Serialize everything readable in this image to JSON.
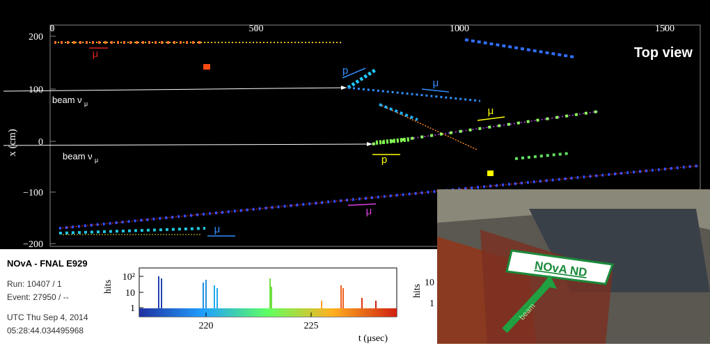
{
  "display": {
    "view_label": "Top view",
    "y_axis_label": "x (cm)",
    "x_ticks": [
      "0",
      "500",
      "1000",
      "1500"
    ],
    "y_ticks": [
      "200",
      "100",
      "0",
      "−100",
      "−200"
    ],
    "annotations": [
      {
        "text": "μ"
      },
      {
        "text": "p"
      },
      {
        "text": "μ"
      },
      {
        "text": "μ"
      },
      {
        "text": "p"
      },
      {
        "text": "μ"
      },
      {
        "text": "μ"
      }
    ],
    "beam_labels": [
      {
        "text": "beam ν",
        "sub": "μ"
      },
      {
        "text": "beam ν",
        "sub": "μ"
      }
    ]
  },
  "info": {
    "experiment": "NOvA - FNAL E929",
    "run": "Run:  10407 / 1",
    "event": "Event: 27950 / --",
    "date": "UTC Thu Sep 4, 2014",
    "time": "05:28:44.034495968"
  },
  "timing": {
    "y_label": "hits",
    "y_ticks": [
      "10²",
      "10",
      "1"
    ],
    "x_ticks": [
      "220",
      "225"
    ],
    "x_label": "t (μsec)",
    "side_y_label": "hits",
    "side_y_ticks": [
      "10",
      "1"
    ]
  },
  "photo": {
    "sign": "NOvA ND",
    "arrow_label": "beam"
  }
}
